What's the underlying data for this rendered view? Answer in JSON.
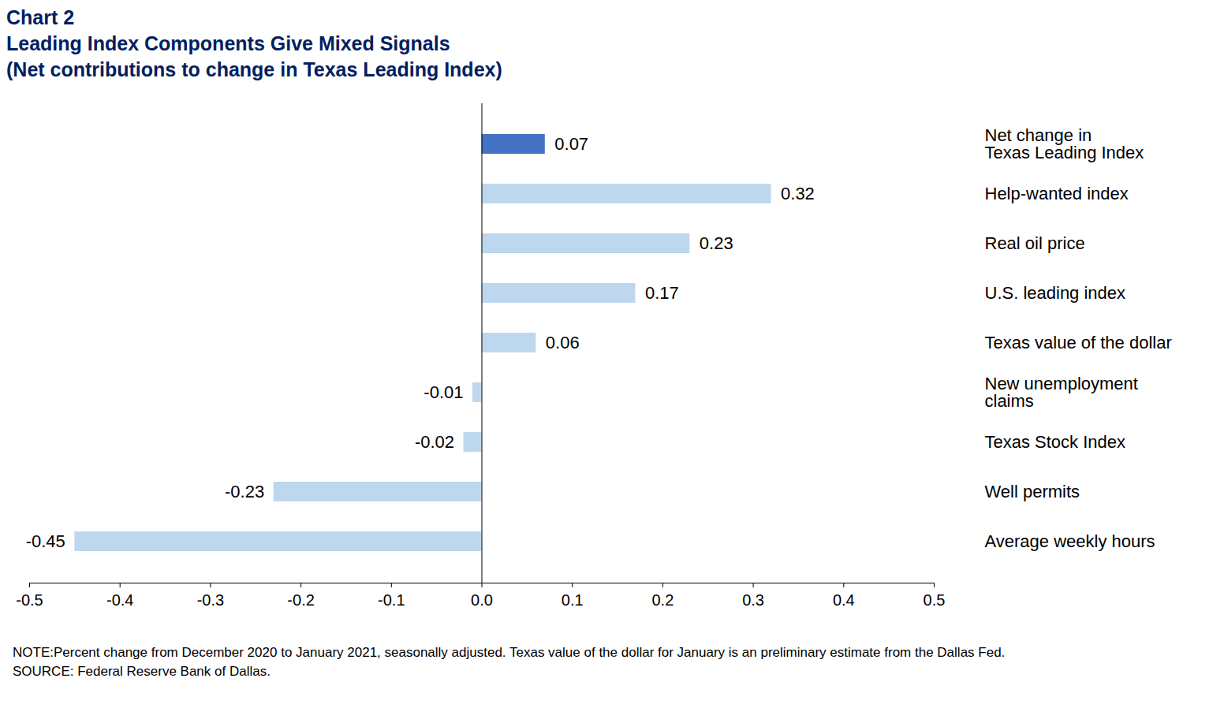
{
  "chart_data": {
    "type": "bar",
    "orientation": "horizontal",
    "title": "Chart 2",
    "subtitle": [
      "Leading Index Components Give Mixed Signals",
      "(Net contributions to change in Texas Leading Index)"
    ],
    "categories": [
      "Net change in\nTexas Leading Index",
      "Help-wanted index",
      "Real oil price",
      "U.S. leading index",
      "Texas value of the dollar",
      "New unemployment\nclaims",
      "Texas Stock Index",
      "Well permits",
      "Average weekly hours"
    ],
    "values": [
      0.07,
      0.32,
      0.23,
      0.17,
      0.06,
      -0.01,
      -0.02,
      -0.23,
      -0.45
    ],
    "colors": [
      "#4472c4",
      "#bdd7ee",
      "#bdd7ee",
      "#bdd7ee",
      "#bdd7ee",
      "#bdd7ee",
      "#bdd7ee",
      "#bdd7ee",
      "#bdd7ee"
    ],
    "xlim": [
      -0.5,
      0.5
    ],
    "xticks": [
      -0.5,
      -0.4,
      -0.3,
      -0.2,
      -0.1,
      {
        "value": 0,
        "label": "0.0"
      },
      0.1,
      0.2,
      0.3,
      0.4,
      0.5
    ],
    "grid": false,
    "data_labels": true,
    "note": "NOTE:Percent change from December 2020 to January 2021, seasonally adjusted. Texas value of the dollar for January is an preliminary estimate from the Dallas Fed.",
    "source": "SOURCE: Federal Reserve Bank of Dallas."
  }
}
